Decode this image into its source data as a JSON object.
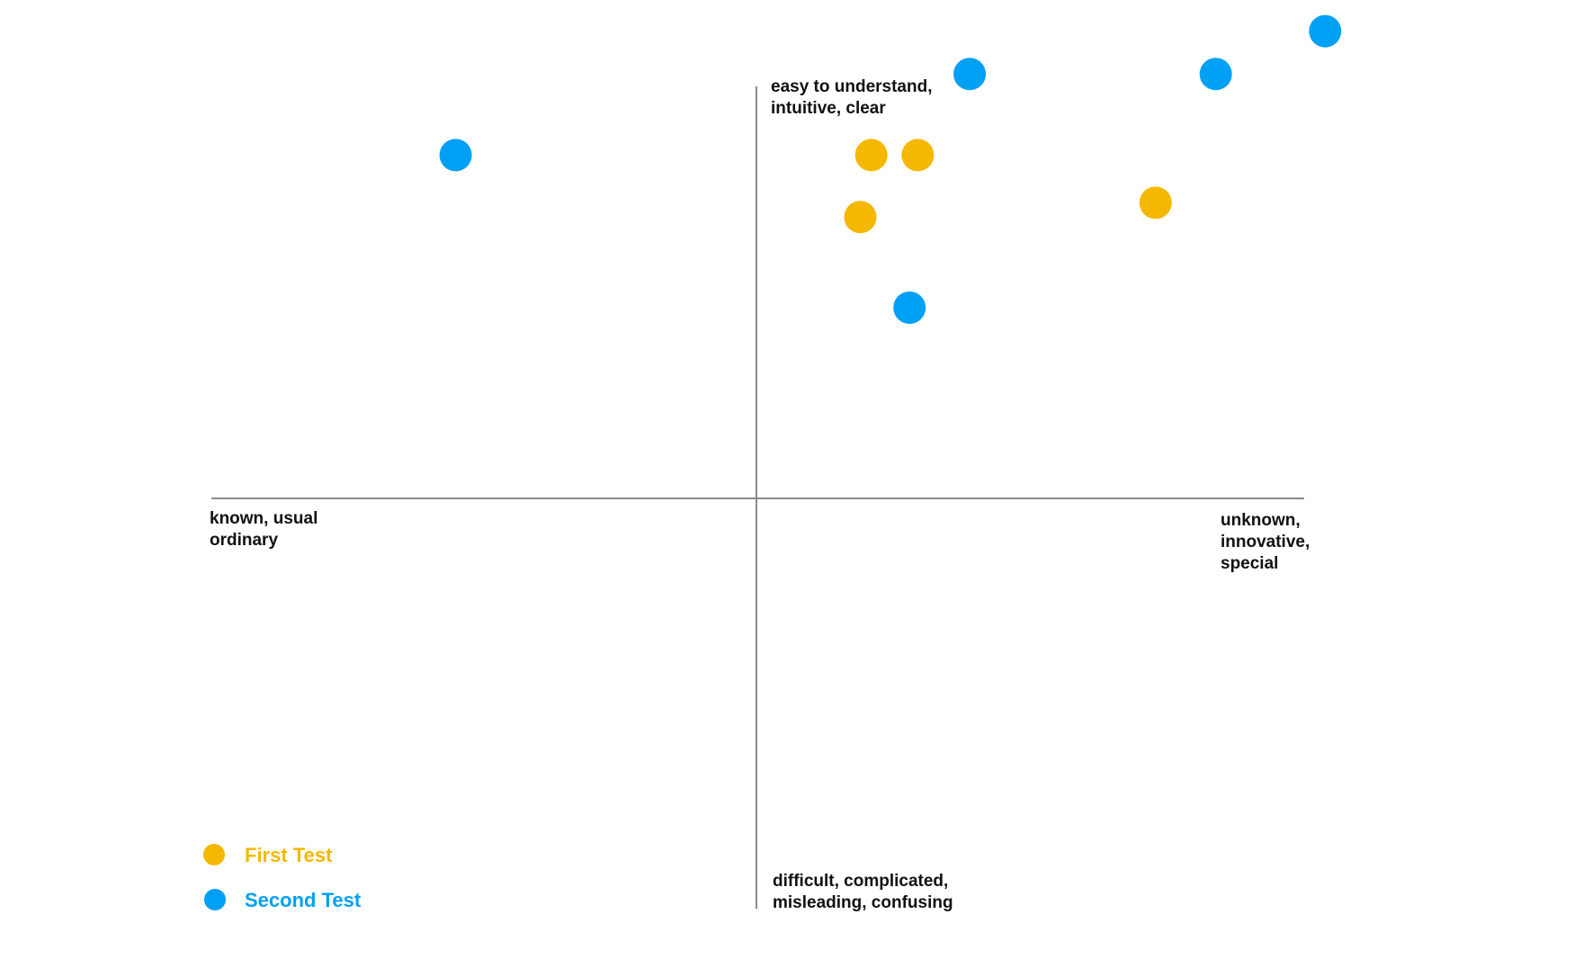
{
  "chart_data": {
    "type": "scatter",
    "title": "",
    "xlim": [
      -1,
      1
    ],
    "ylim": [
      -1,
      1
    ],
    "grid": false,
    "legend_placement": "bottom-left",
    "axis_labels": {
      "top": [
        "easy to understand,",
        "intuitive, clear"
      ],
      "bottom": [
        "difficult, complicated,",
        "misleading, confusing"
      ],
      "left": [
        "known, usual",
        "ordinary"
      ],
      "right": [
        "unknown,",
        "innovative,",
        "special"
      ]
    },
    "series": [
      {
        "name": "First Test",
        "color": "#F5B800",
        "points": [
          {
            "x": 0.21,
            "y": 0.72
          },
          {
            "x": 0.295,
            "y": 0.72
          },
          {
            "x": 0.19,
            "y": 0.59
          },
          {
            "x": 0.73,
            "y": 0.62
          }
        ]
      },
      {
        "name": "Second Test",
        "color": "#00A0F5",
        "points": [
          {
            "x": -0.55,
            "y": 0.72
          },
          {
            "x": 0.39,
            "y": 0.89
          },
          {
            "x": 0.84,
            "y": 0.89
          },
          {
            "x": 1.04,
            "y": 0.98
          },
          {
            "x": 0.28,
            "y": 0.4
          }
        ]
      }
    ]
  }
}
